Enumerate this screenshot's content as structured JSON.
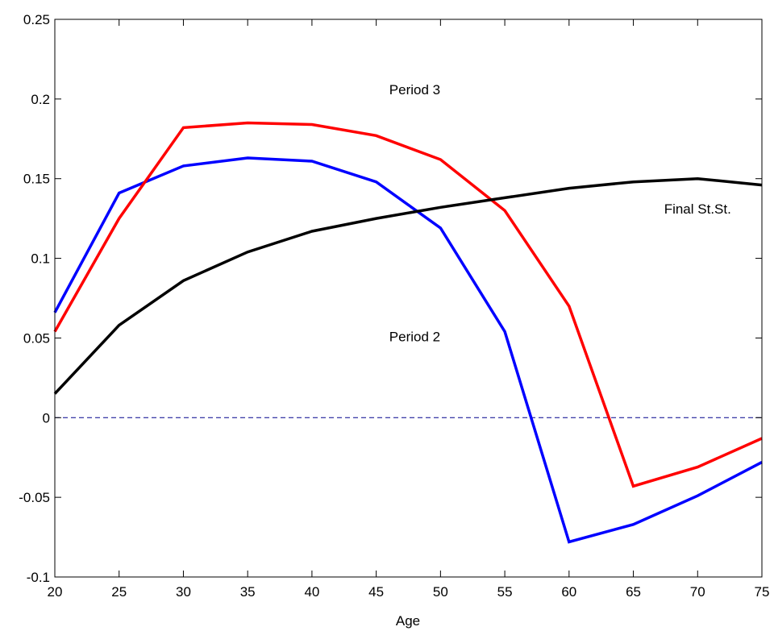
{
  "chart_data": {
    "type": "line",
    "title": "",
    "xlabel": "Age",
    "ylabel": "",
    "xlim": [
      20,
      75
    ],
    "ylim": [
      -0.1,
      0.25
    ],
    "x_ticks": [
      20,
      25,
      30,
      35,
      40,
      45,
      50,
      55,
      60,
      65,
      70,
      75
    ],
    "x_tick_labels": [
      "20",
      "25",
      "30",
      "35",
      "40",
      "45",
      "50",
      "55",
      "60",
      "65",
      "70",
      "75"
    ],
    "y_ticks": [
      -0.1,
      -0.05,
      0,
      0.05,
      0.1,
      0.15,
      0.2,
      0.25
    ],
    "y_tick_labels": [
      "-0.1",
      "-0.05",
      "0",
      "0.05",
      "0.1",
      "0.15",
      "0.2",
      "0.25"
    ],
    "grid": false,
    "x": [
      20,
      25,
      30,
      35,
      40,
      45,
      50,
      55,
      60,
      65,
      70,
      75
    ],
    "series": [
      {
        "name": "Period 2",
        "color": "#0000ff",
        "values": [
          0.066,
          0.141,
          0.158,
          0.163,
          0.161,
          0.148,
          0.119,
          0.054,
          -0.078,
          -0.067,
          -0.049,
          -0.028
        ]
      },
      {
        "name": "Period 3",
        "color": "#ff0000",
        "values": [
          0.054,
          0.125,
          0.182,
          0.185,
          0.184,
          0.177,
          0.162,
          0.13,
          0.07,
          -0.043,
          -0.031,
          -0.013
        ]
      },
      {
        "name": "Final St.St.",
        "color": "#000000",
        "values": [
          0.015,
          0.058,
          0.086,
          0.104,
          0.117,
          0.125,
          0.132,
          0.138,
          0.144,
          0.148,
          0.15,
          0.146
        ]
      }
    ],
    "reference_line": {
      "y": 0,
      "color": "#00008b",
      "style": "dashed"
    },
    "annotations": [
      {
        "text": "Period 3",
        "x": 48,
        "y": 0.203
      },
      {
        "text": "Final St.St.",
        "x": 70,
        "y": 0.128
      },
      {
        "text": "Period 2",
        "x": 48,
        "y": 0.048
      }
    ]
  }
}
